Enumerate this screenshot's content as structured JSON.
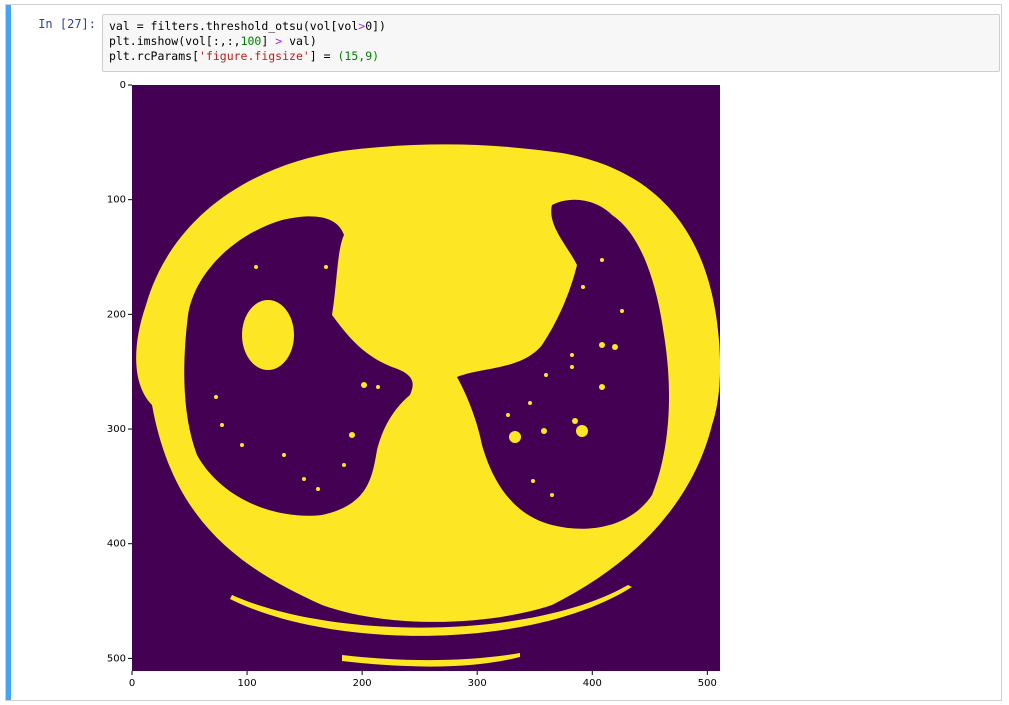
{
  "cell": {
    "prompt": "In [27]:",
    "code_lines": [
      [
        {
          "t": "val = filters.threshold_otsu(vol[vol"
        },
        {
          "t": ">",
          "c": "op"
        },
        {
          "t": "0"
        },
        {
          "t": "])"
        }
      ],
      [
        {
          "t": "plt.imshow(vol[:,:,"
        },
        {
          "t": "100",
          "c": "num"
        },
        {
          "t": "] "
        },
        {
          "t": ">",
          "c": "op"
        },
        {
          "t": " val)"
        }
      ],
      [
        {
          "t": "plt.rcParams["
        },
        {
          "t": "'figure.figsize'",
          "c": "str"
        },
        {
          "t": "] = "
        },
        {
          "t": "(15,9)",
          "c": "num"
        }
      ]
    ]
  },
  "chart_data": {
    "type": "heatmap",
    "title": "",
    "xlabel": "",
    "ylabel": "",
    "xlim": [
      0,
      511
    ],
    "ylim": [
      511,
      0
    ],
    "xticks": [
      "0",
      "100",
      "200",
      "300",
      "400",
      "500"
    ],
    "yticks": [
      "0",
      "100",
      "200",
      "300",
      "400",
      "500"
    ],
    "colors": {
      "background": "#440154",
      "foreground": "#fde725"
    },
    "description_values": "binary mask: vol[:,:,100] > otsu threshold"
  }
}
